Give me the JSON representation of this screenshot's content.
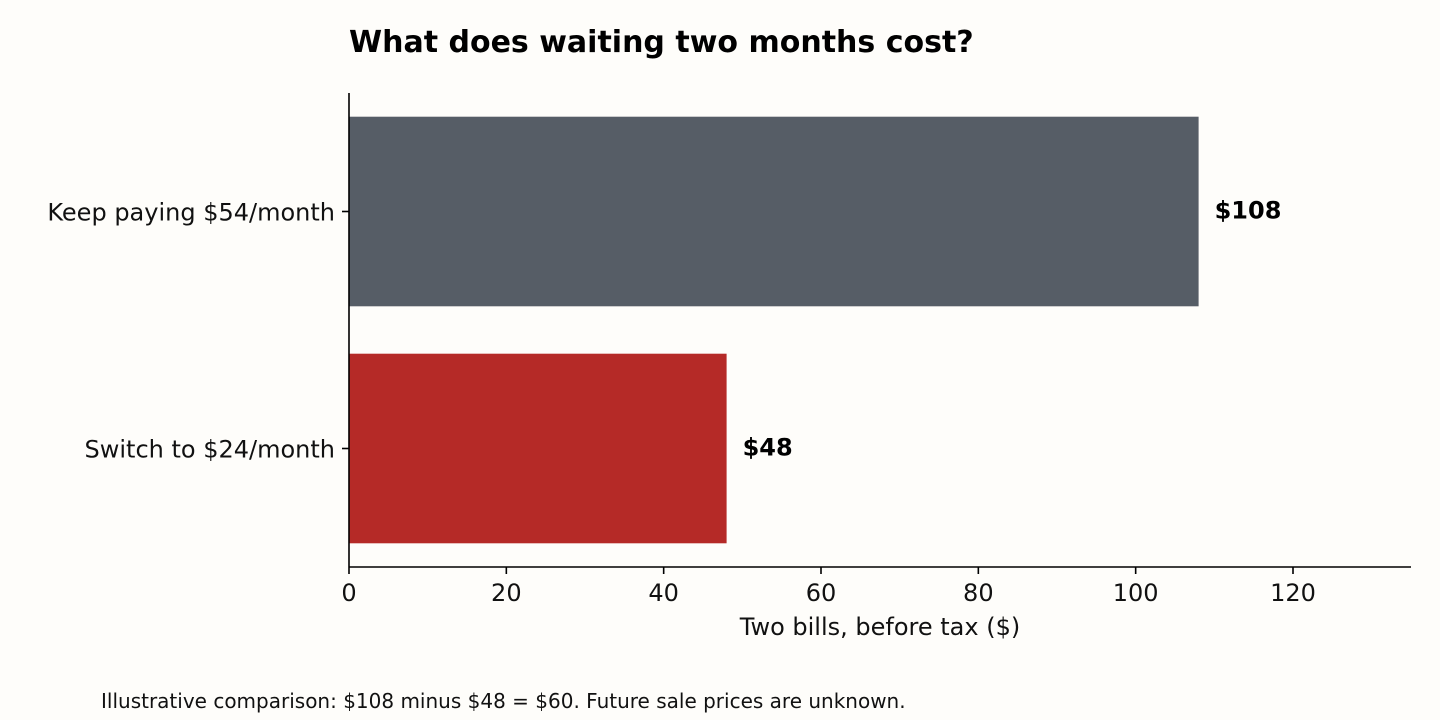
{
  "chart_data": {
    "type": "bar",
    "orientation": "horizontal",
    "title": "What does waiting two months cost?",
    "xlabel": "Two bills, before tax ($)",
    "ylabel": "",
    "categories": [
      "Keep paying $54/month",
      "Switch to $24/month"
    ],
    "values": [
      108,
      48
    ],
    "data_labels": [
      "$108",
      "$48"
    ],
    "colors": [
      "#565d66",
      "#b52a27"
    ],
    "xlim": [
      0,
      135
    ],
    "xticks": [
      0,
      20,
      40,
      60,
      80,
      100,
      120
    ],
    "grid": false,
    "legend": "none"
  },
  "footnote": "Illustrative comparison: $108 minus $48 = $60. Future sale prices are unknown."
}
